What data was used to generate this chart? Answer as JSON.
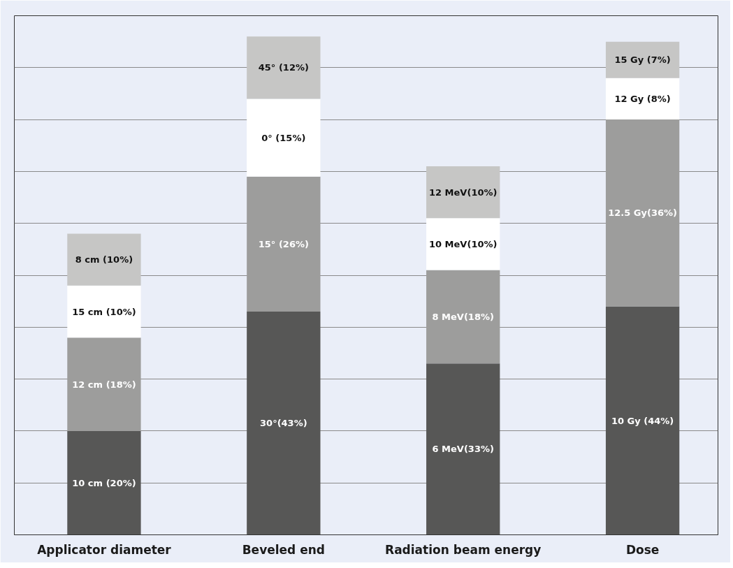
{
  "chart_data": {
    "type": "bar",
    "stacked": true,
    "grid": "y",
    "tick_labels": "x",
    "categories": [
      "Applicator diameter",
      "Beveled end",
      "Radiation beam energy",
      "Dose"
    ],
    "ylim": [
      0,
      100
    ],
    "yticks": [
      {
        "value": 10,
        "label": null
      },
      {
        "value": 20,
        "label": null
      },
      {
        "value": 30,
        "label": null
      },
      {
        "value": 40,
        "label": null
      },
      {
        "value": 50,
        "label": null
      },
      {
        "value": 60,
        "label": null
      },
      {
        "value": 70,
        "label": null
      },
      {
        "value": 80,
        "label": null
      },
      {
        "value": 90,
        "label": null
      },
      {
        "value": 100,
        "label": null
      }
    ],
    "series": [
      {
        "color": "#575756",
        "values": [
          20,
          43,
          33,
          44
        ],
        "value_labels": [
          "10 cm (20%)",
          "30°(43%)",
          "6 MeV(33%)",
          "10 Gy (44%)"
        ]
      },
      {
        "color": "#9d9d9c",
        "values": [
          18,
          26,
          18,
          36
        ],
        "value_labels": [
          "12 cm (18%)",
          "15° (26%)",
          "8 MeV(18%)",
          "12.5 Gy(36%)"
        ]
      },
      {
        "color": "#ffffff",
        "values": [
          10,
          15,
          10,
          8
        ],
        "value_labels": [
          "15 cm (10%)",
          "0° (15%)",
          "10 MeV(10%)",
          "12 Gy (8%)"
        ]
      },
      {
        "color": "#c6c6c5",
        "values": [
          10,
          12,
          10,
          7
        ],
        "value_labels": [
          "8 cm (10%)",
          "45° (12%)",
          "12 MeV(10%)",
          "15 Gy (7%)"
        ]
      }
    ]
  }
}
